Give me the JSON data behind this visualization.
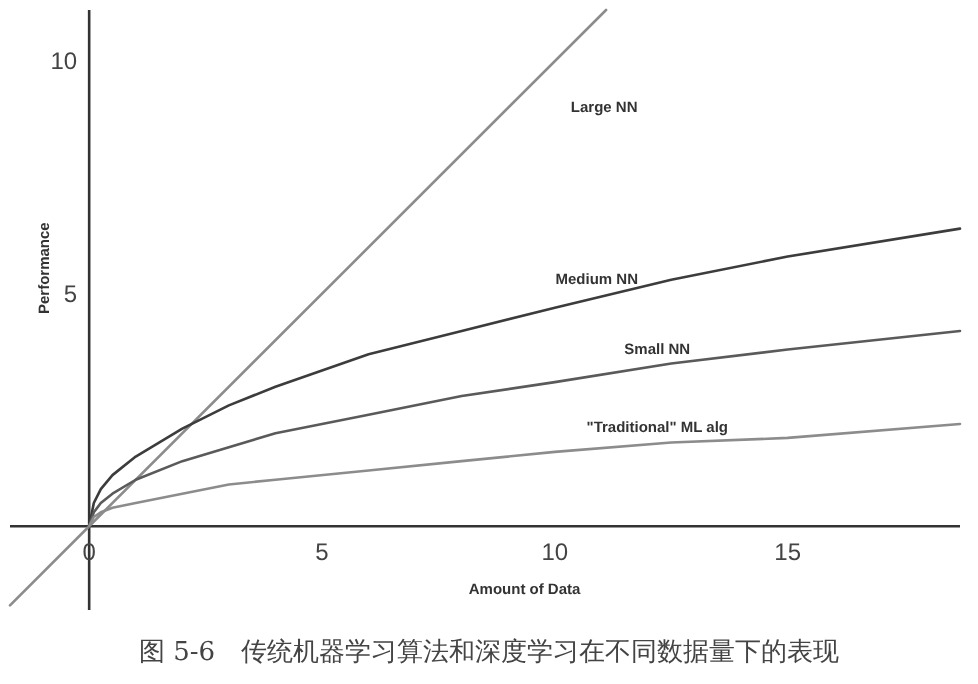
{
  "chart_data": {
    "type": "line",
    "xlabel": "Amount of Data",
    "ylabel": "Performance",
    "annotations": [
      "图 5-6　传统机器学习算法和深度学习在不同数据量下的表现"
    ],
    "xlim": [
      -1.7,
      18.7
    ],
    "ylim": [
      -1.8,
      11.1
    ],
    "xticks": [
      0,
      5,
      10,
      15
    ],
    "yticks": [
      5,
      10
    ],
    "series": [
      {
        "name": "Large NN",
        "color": "#8c8c8c",
        "x": [
          -1.7,
          0,
          11.1
        ],
        "values": [
          -1.7,
          0,
          11.1
        ]
      },
      {
        "name": "Medium NN",
        "color": "#3c3c3c",
        "x": [
          0,
          0.1,
          0.25,
          0.5,
          1,
          2,
          3,
          4,
          6,
          8,
          10,
          12.5,
          15,
          18.7
        ],
        "values": [
          0,
          0.5,
          0.8,
          1.1,
          1.5,
          2.1,
          2.6,
          3.0,
          3.7,
          4.2,
          4.7,
          5.3,
          5.8,
          6.4
        ]
      },
      {
        "name": "Small NN",
        "color": "#5a5a5a",
        "x": [
          0,
          0.1,
          0.25,
          0.5,
          1,
          2,
          3,
          4,
          6,
          8,
          10,
          12.5,
          15,
          18.7
        ],
        "values": [
          0,
          0.3,
          0.5,
          0.7,
          1.0,
          1.4,
          1.7,
          2.0,
          2.4,
          2.8,
          3.1,
          3.5,
          3.8,
          4.2
        ]
      },
      {
        "name": "\"Traditional\" ML alg",
        "color": "#8c8c8c",
        "x": [
          0,
          0.1,
          0.25,
          0.5,
          1,
          2,
          3,
          4,
          6,
          8,
          10,
          12.5,
          15,
          18.7
        ],
        "values": [
          0,
          0.2,
          0.3,
          0.4,
          0.5,
          0.7,
          0.9,
          1.0,
          1.2,
          1.4,
          1.6,
          1.8,
          1.9,
          2.2
        ]
      }
    ]
  }
}
